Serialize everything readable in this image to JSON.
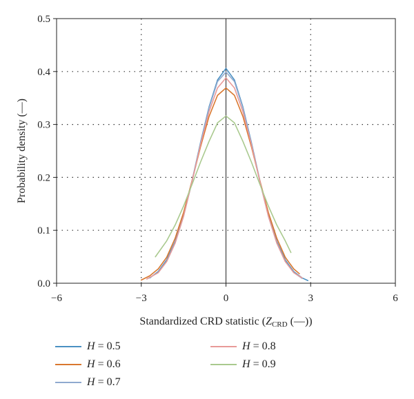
{
  "chart_data": {
    "type": "line",
    "xlabel_prefix": "Standardized CRD statistic (",
    "xlabel_var": "Z",
    "xlabel_sub": "CRD",
    "xlabel_suffix": " (—))",
    "ylabel": "Probability density (—)",
    "xlim": [
      -6,
      6
    ],
    "ylim": [
      0,
      0.5
    ],
    "xticks": [
      -6,
      -3,
      0,
      3,
      6
    ],
    "yticks": [
      0.0,
      0.1,
      0.2,
      0.3,
      0.4,
      0.5
    ],
    "xtick_labels": [
      "−6",
      "−3",
      "0",
      "3",
      "6"
    ],
    "ytick_labels": [
      "0.0",
      "0.1",
      "0.2",
      "0.3",
      "0.4",
      "0.5"
    ],
    "grid": "dotted at x = -3, 3 and y = 0.1, 0.2, 0.3, 0.4",
    "legend_placement": "below the plot, two columns",
    "series": [
      {
        "name": "H = 0.5",
        "label_var": "H",
        "label_rest": " = 0.5",
        "color": "#4a90c2",
        "x": [
          -2.7,
          -2.4,
          -2.1,
          -1.8,
          -1.5,
          -1.2,
          -0.9,
          -0.6,
          -0.3,
          0.0,
          0.3,
          0.6,
          0.9,
          1.2,
          1.5,
          1.8,
          2.1,
          2.4,
          2.7,
          2.9
        ],
        "y": [
          0.01,
          0.022,
          0.044,
          0.079,
          0.13,
          0.194,
          0.266,
          0.333,
          0.384,
          0.406,
          0.384,
          0.333,
          0.266,
          0.194,
          0.13,
          0.079,
          0.044,
          0.022,
          0.01,
          0.005
        ]
      },
      {
        "name": "H = 0.6",
        "label_var": "H",
        "label_rest": " = 0.6",
        "color": "#d9772e",
        "x": [
          -3.0,
          -2.7,
          -2.4,
          -2.1,
          -1.8,
          -1.5,
          -1.2,
          -0.9,
          -0.6,
          -0.3,
          0.0,
          0.3,
          0.6,
          0.9,
          1.2,
          1.5,
          1.8,
          2.1,
          2.4,
          2.6
        ],
        "y": [
          0.006,
          0.014,
          0.027,
          0.049,
          0.085,
          0.134,
          0.194,
          0.258,
          0.315,
          0.355,
          0.369,
          0.355,
          0.315,
          0.258,
          0.194,
          0.134,
          0.085,
          0.049,
          0.027,
          0.018
        ]
      },
      {
        "name": "H = 0.7",
        "label_var": "H",
        "label_rest": " = 0.7",
        "color": "#8fa9cf",
        "x": [
          -2.8,
          -2.4,
          -2.1,
          -1.8,
          -1.5,
          -1.2,
          -0.9,
          -0.6,
          -0.3,
          0.0,
          0.3,
          0.6,
          0.9,
          1.2,
          1.5,
          1.8,
          2.1,
          2.4,
          2.7
        ],
        "y": [
          0.008,
          0.02,
          0.041,
          0.076,
          0.127,
          0.192,
          0.264,
          0.331,
          0.381,
          0.399,
          0.381,
          0.331,
          0.264,
          0.192,
          0.127,
          0.076,
          0.041,
          0.02,
          0.009
        ]
      },
      {
        "name": "H = 0.8",
        "label_var": "H",
        "label_rest": " = 0.8",
        "color": "#e89a98",
        "x": [
          -2.8,
          -2.4,
          -2.1,
          -1.8,
          -1.5,
          -1.2,
          -0.9,
          -0.6,
          -0.3,
          0.0,
          0.3,
          0.6,
          0.9,
          1.2,
          1.5,
          1.8,
          2.1,
          2.4,
          2.7
        ],
        "y": [
          0.008,
          0.02,
          0.041,
          0.076,
          0.127,
          0.193,
          0.262,
          0.324,
          0.369,
          0.388,
          0.369,
          0.324,
          0.262,
          0.193,
          0.127,
          0.076,
          0.041,
          0.02,
          0.01
        ]
      },
      {
        "name": "H = 0.9",
        "label_var": "H",
        "label_rest": " = 0.9",
        "color": "#a9c98e",
        "x": [
          -2.5,
          -2.1,
          -1.8,
          -1.5,
          -1.2,
          -0.9,
          -0.6,
          -0.3,
          0.0,
          0.3,
          0.6,
          0.9,
          1.2,
          1.5,
          1.8,
          2.1,
          2.3
        ],
        "y": [
          0.05,
          0.08,
          0.11,
          0.146,
          0.187,
          0.229,
          0.268,
          0.303,
          0.316,
          0.303,
          0.268,
          0.229,
          0.187,
          0.146,
          0.11,
          0.08,
          0.058
        ]
      }
    ]
  }
}
